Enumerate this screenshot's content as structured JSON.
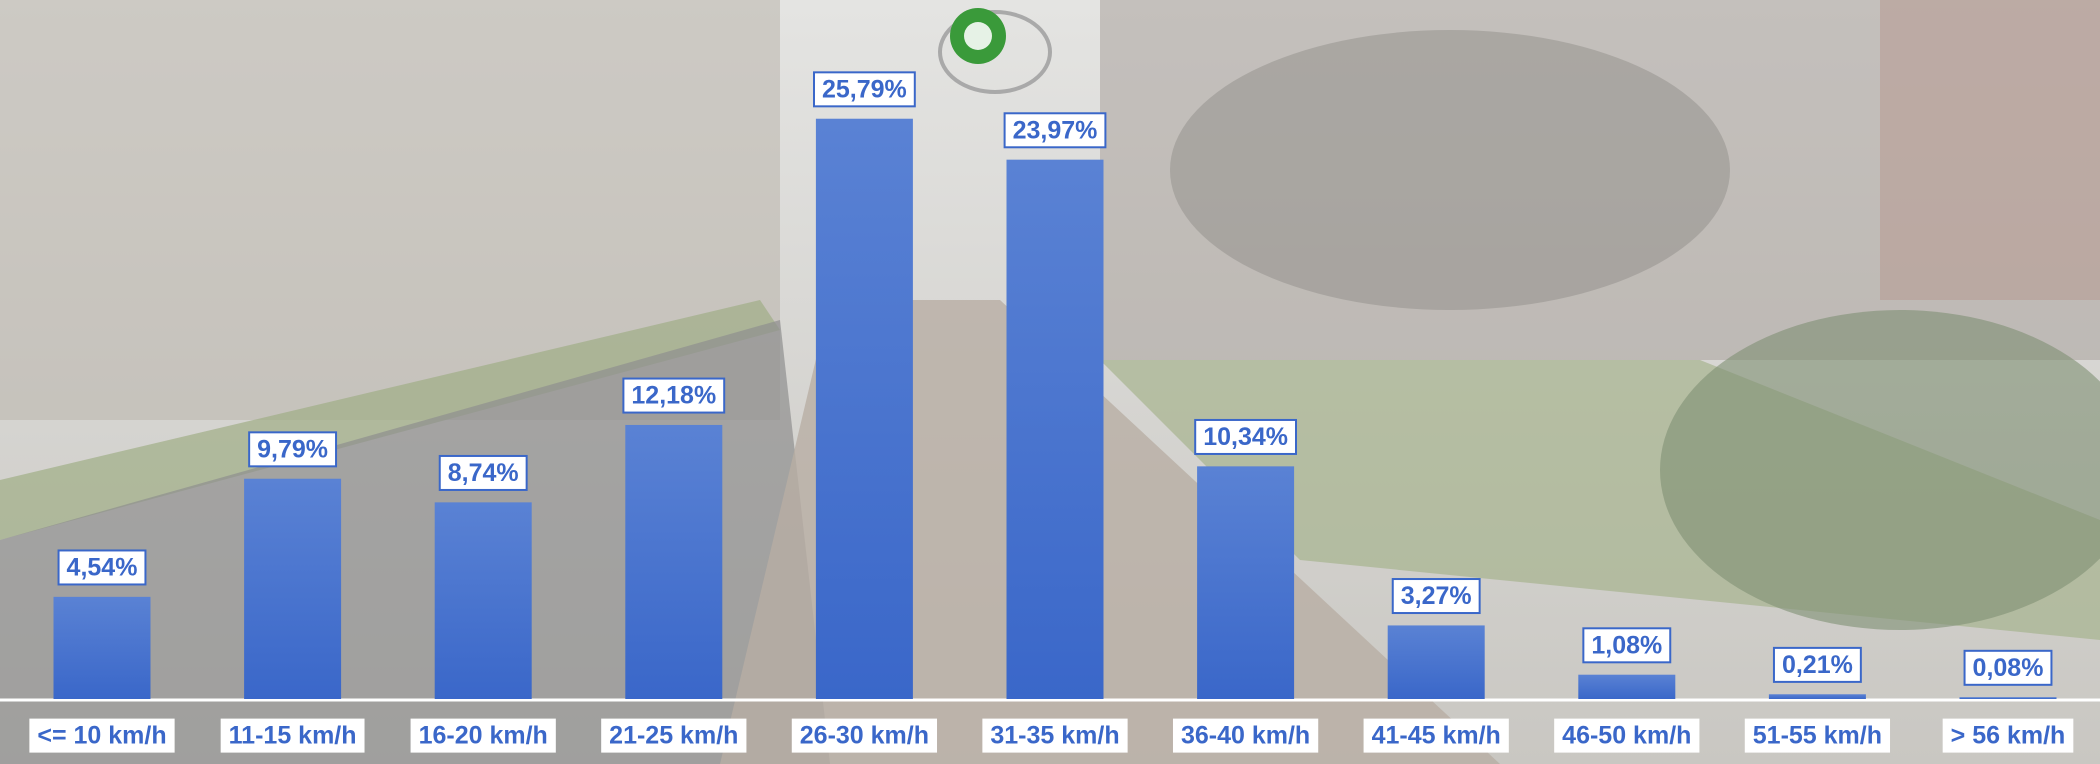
{
  "chart_data": {
    "type": "bar",
    "categories": [
      "<= 10 km/h",
      "11-15 km/h",
      "16-20 km/h",
      "21-25 km/h",
      "26-30 km/h",
      "31-35 km/h",
      "36-40 km/h",
      "41-45 km/h",
      "46-50 km/h",
      "51-55 km/h",
      "> 56 km/h"
    ],
    "values": [
      4.54,
      9.79,
      8.74,
      12.18,
      25.79,
      23.97,
      10.34,
      3.27,
      1.08,
      0.21,
      0.08
    ],
    "value_labels": [
      "4,54%",
      "9,79%",
      "8,74%",
      "12,18%",
      "25,79%",
      "23,97%",
      "10,34%",
      "3,27%",
      "1,08%",
      "0,21%",
      "0,08%"
    ],
    "color": "#3a67c9"
  }
}
